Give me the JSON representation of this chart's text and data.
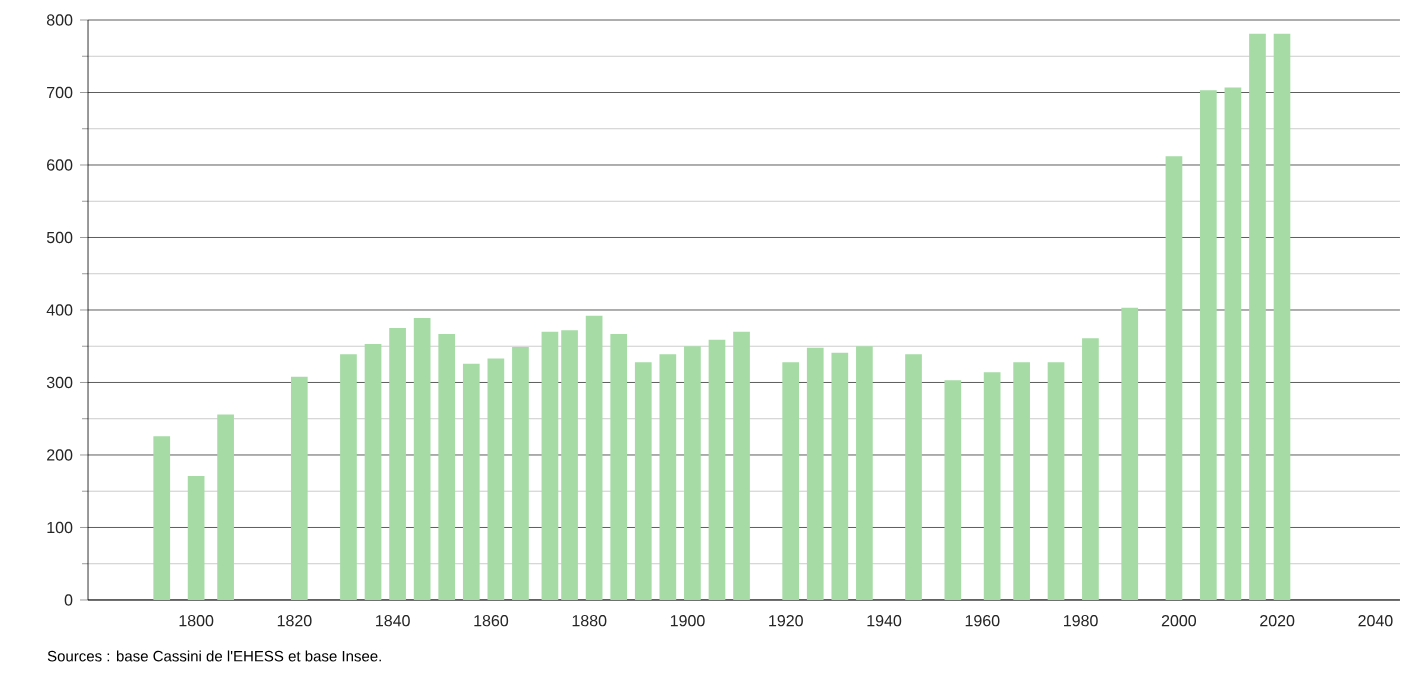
{
  "chart_data": {
    "type": "bar",
    "x": [
      1793,
      1800,
      1806,
      1821,
      1831,
      1836,
      1841,
      1846,
      1851,
      1856,
      1861,
      1866,
      1872,
      1876,
      1881,
      1886,
      1891,
      1896,
      1901,
      1906,
      1911,
      1921,
      1926,
      1931,
      1936,
      1946,
      1954,
      1962,
      1968,
      1975,
      1982,
      1990,
      1999,
      2006,
      2011,
      2016,
      2021
    ],
    "values": [
      226,
      171,
      256,
      308,
      339,
      353,
      375,
      389,
      367,
      326,
      333,
      349,
      370,
      372,
      392,
      367,
      328,
      339,
      350,
      359,
      370,
      328,
      348,
      341,
      350,
      339,
      303,
      314,
      328,
      328,
      361,
      403,
      612,
      703,
      707,
      781,
      781
    ],
    "color": "#a6dba6",
    "xlim": [
      1778,
      2045
    ],
    "xticks": [
      1800,
      1820,
      1840,
      1860,
      1880,
      1900,
      1920,
      1940,
      1960,
      1980,
      2000,
      2020,
      2040
    ],
    "ylim": [
      0,
      800
    ],
    "yticks": [
      0,
      100,
      200,
      300,
      400,
      500,
      600,
      700,
      800
    ],
    "grid": "y",
    "annotations": [
      "Sources : base Cassini de l'EHESS et base Insee."
    ]
  }
}
